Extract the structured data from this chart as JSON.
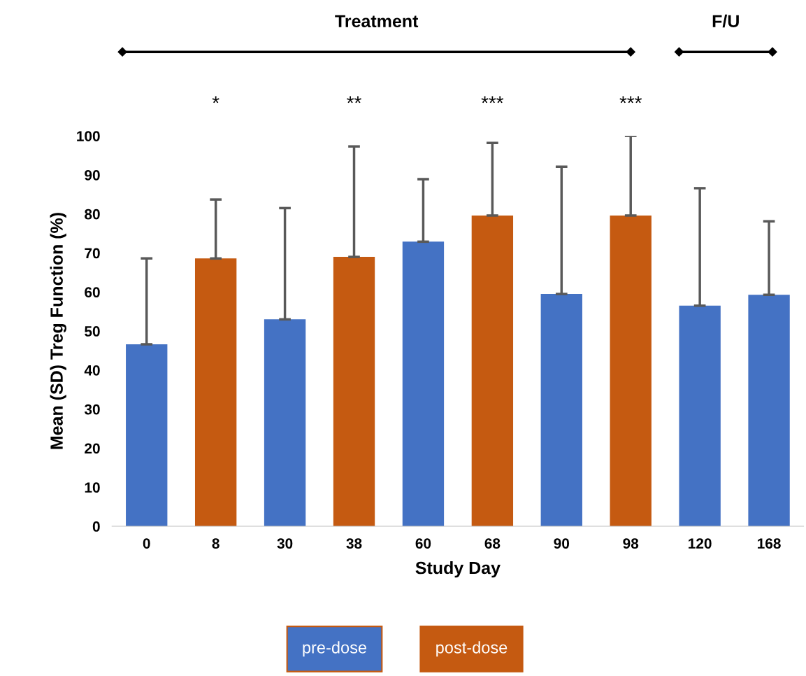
{
  "chart_data": {
    "type": "bar",
    "xlabel": "Study Day",
    "ylabel": "Mean (SD) Treg Function (%)",
    "categories": [
      "0",
      "8",
      "30",
      "38",
      "60",
      "68",
      "90",
      "98",
      "120",
      "168"
    ],
    "series": [
      {
        "name": "pre-dose",
        "color": "#4472c4",
        "values": [
          46.6,
          null,
          53.0,
          null,
          72.9,
          null,
          59.5,
          null,
          56.5,
          59.3
        ],
        "errors": [
          [
            46.6,
            68.6
          ],
          null,
          [
            53.0,
            81.5
          ],
          null,
          [
            72.9,
            88.9
          ],
          null,
          [
            59.5,
            92.1
          ],
          null,
          [
            56.5,
            86.6
          ],
          [
            59.3,
            78.1
          ]
        ]
      },
      {
        "name": "post-dose",
        "color": "#c55a11",
        "values": [
          null,
          68.6,
          null,
          69.0,
          null,
          79.6,
          null,
          79.6,
          null,
          null
        ],
        "errors": [
          null,
          [
            68.6,
            83.7
          ],
          null,
          [
            69.0,
            97.3
          ],
          null,
          [
            79.6,
            98.2
          ],
          null,
          [
            79.6,
            100
          ],
          null,
          null
        ]
      }
    ],
    "ylim": [
      0,
      100
    ],
    "yticks": [
      0,
      10,
      20,
      30,
      40,
      50,
      60,
      70,
      80,
      90,
      100
    ],
    "legend": "bottom",
    "grid": false,
    "annotations": [
      "Treatment",
      "F/U",
      "*",
      "**",
      "***",
      "***"
    ]
  }
}
